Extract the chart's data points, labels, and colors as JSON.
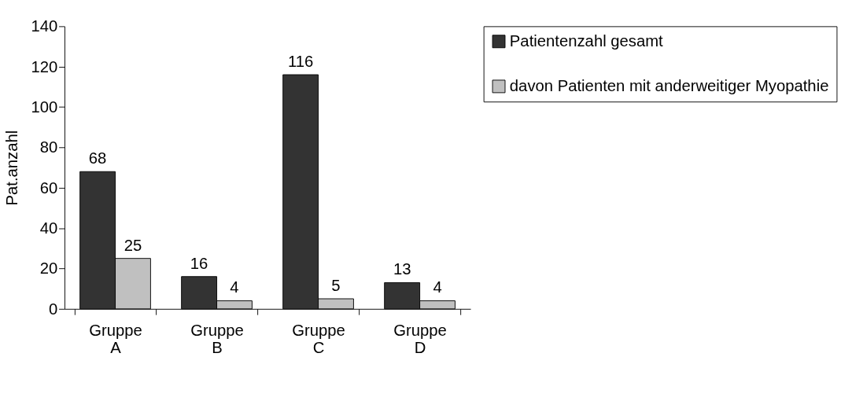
{
  "chart_data": {
    "type": "bar",
    "ylabel": "Pat.anzahl",
    "categories": [
      "Gruppe A",
      "Gruppe B",
      "Gruppe C",
      "Gruppe D"
    ],
    "series": [
      {
        "name": "Patientenzahl gesamt",
        "color": "#333333",
        "values": [
          68,
          16,
          116,
          13
        ]
      },
      {
        "name": "davon Patienten mit anderweitiger Myopathie",
        "color": "#c0c0c0",
        "values": [
          25,
          4,
          5,
          4
        ]
      }
    ],
    "ylim": [
      0,
      140
    ],
    "yticks": [
      0,
      20,
      40,
      60,
      80,
      100,
      120,
      140
    ],
    "grid": false,
    "legend": "right",
    "data_labels": true
  }
}
